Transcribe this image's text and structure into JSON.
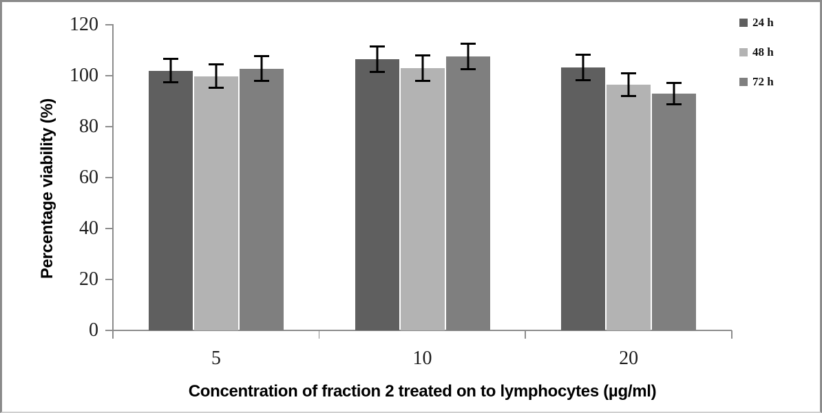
{
  "chart_data": {
    "type": "bar",
    "title": "",
    "categories": [
      "5",
      "10",
      "20"
    ],
    "series": [
      {
        "name": "24 h",
        "color": "#5f5f5f",
        "values": [
          102.0,
          106.5,
          103.2
        ],
        "errors": [
          5.0,
          5.4,
          5.4
        ]
      },
      {
        "name": "48 h",
        "color": "#b3b3b3",
        "values": [
          99.8,
          103.0,
          96.5
        ],
        "errors": [
          5.0,
          5.3,
          4.9
        ]
      },
      {
        "name": "72 h",
        "color": "#7f7f7f",
        "values": [
          102.8,
          107.6,
          93.0
        ],
        "errors": [
          5.2,
          5.4,
          4.5
        ]
      }
    ],
    "xlabel": "Concentration of fraction 2 treated on to lymphocytes (µg/ml)",
    "ylabel": "Percentage viability (%)",
    "ylim": [
      0,
      120
    ],
    "yticks": [
      0,
      20,
      40,
      60,
      80,
      100,
      120
    ],
    "grid": false,
    "legend_position": "top-right",
    "error_bar_color": "#000000",
    "axis_color": "#8c8c8c"
  }
}
